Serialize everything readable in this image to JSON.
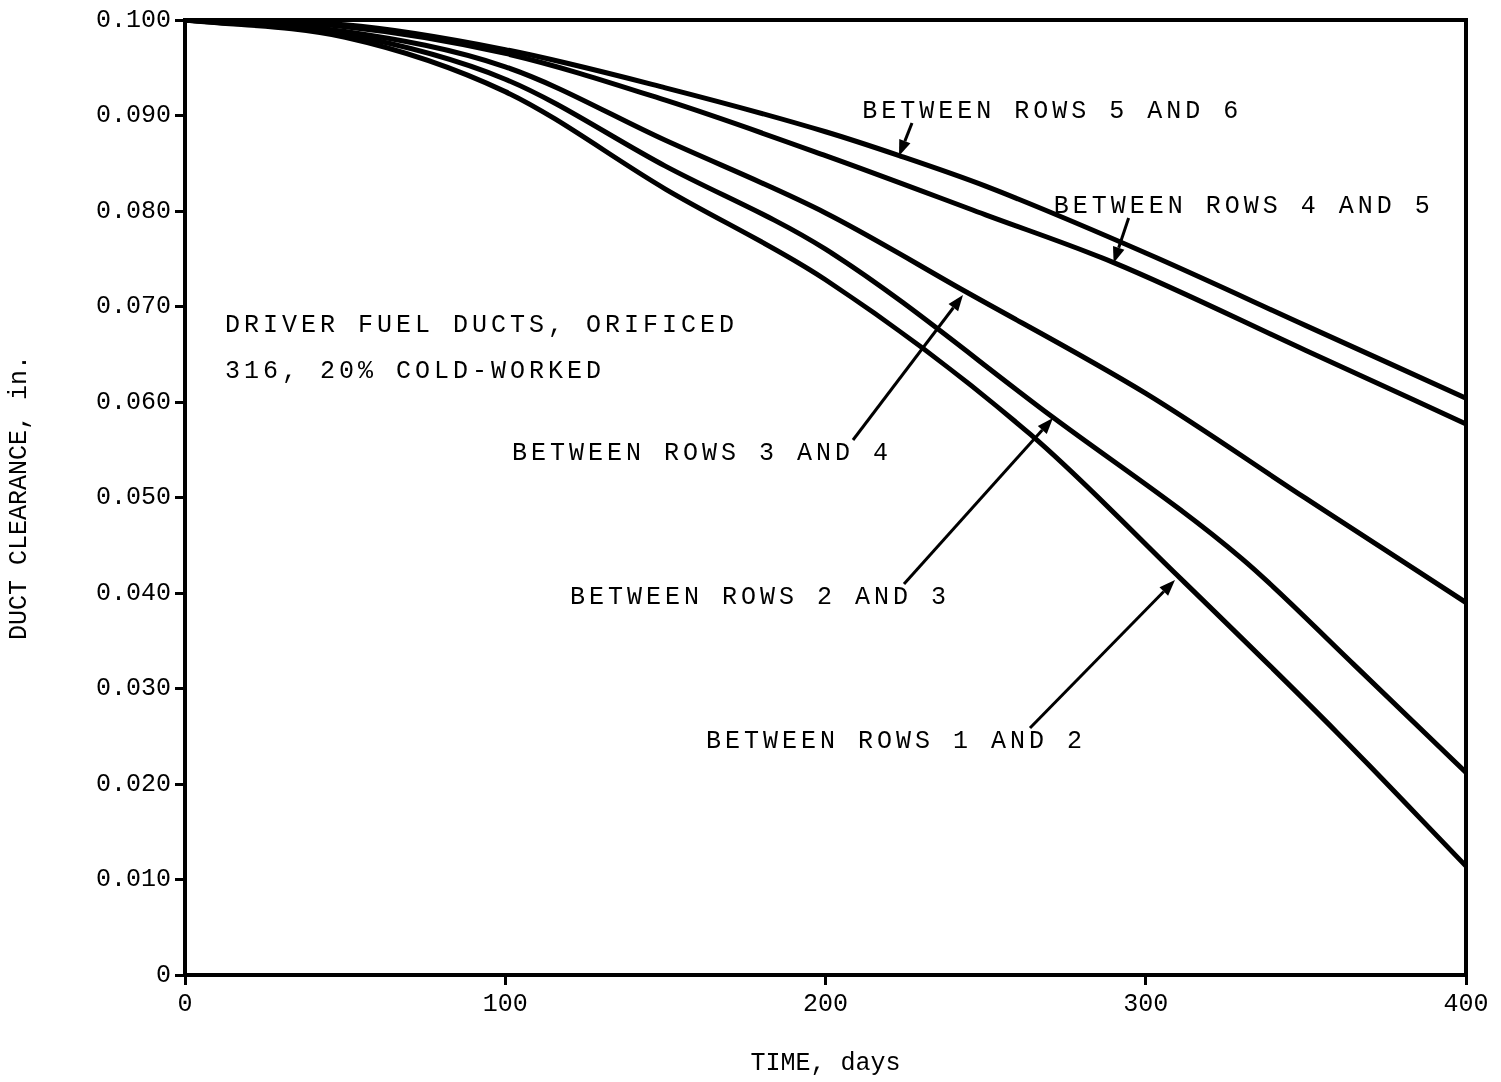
{
  "chart_data": {
    "type": "line",
    "xlabel": "TIME, days",
    "ylabel": "DUCT CLEARANCE, in.",
    "series": [
      {
        "color": "#000000",
        "x": [
          0,
          50,
          100,
          150,
          200,
          223,
          250,
          300,
          350,
          400
        ],
        "values": [
          0.1,
          0.0995,
          0.0969,
          0.0929,
          0.0883,
          0.0858,
          0.0826,
          0.0756,
          0.068,
          0.0604
        ]
      },
      {
        "color": "#000000",
        "x": [
          0,
          50,
          100,
          150,
          200,
          250,
          290,
          350,
          400
        ],
        "values": [
          0.1,
          0.0993,
          0.0965,
          0.0916,
          0.0858,
          0.0796,
          0.0746,
          0.0654,
          0.0577
        ]
      },
      {
        "color": "#000000",
        "x": [
          0,
          50,
          100,
          150,
          200,
          243,
          300,
          350,
          400
        ],
        "values": [
          0.1,
          0.0988,
          0.0951,
          0.0874,
          0.0798,
          0.0717,
          0.0609,
          0.0499,
          0.039
        ]
      },
      {
        "color": "#000000",
        "x": [
          0,
          50,
          100,
          150,
          200,
          271,
          330,
          365,
          400
        ],
        "values": [
          0.1,
          0.0985,
          0.0938,
          0.0847,
          0.076,
          0.0584,
          0.0436,
          0.0325,
          0.0212
        ]
      },
      {
        "color": "#000000",
        "x": [
          0,
          50,
          100,
          150,
          200,
          264,
          310,
          360,
          400
        ],
        "values": [
          0.1,
          0.0982,
          0.0925,
          0.0823,
          0.0728,
          0.0566,
          0.0418,
          0.0253,
          0.0114
        ]
      }
    ],
    "annotations": [
      "DRIVER FUEL DUCTS, ORIFICED",
      "316, 20% COLD-WORKED",
      {
        "text": "BETWEEN ROWS 5 AND 6",
        "x": 223,
        "y": 0.0858
      },
      {
        "text": "BETWEEN ROWS 4 AND 5",
        "x": 290,
        "y": 0.0746
      },
      "BETWEEN ROWS 3 AND 4",
      "BETWEEN ROWS 2 AND 3",
      "BETWEEN ROWS 1 AND 2"
    ],
    "xlim": [
      0,
      400
    ],
    "xticks": [
      0,
      100,
      200,
      300,
      400
    ],
    "ylim": [
      0,
      0.1
    ],
    "yticks": [
      0,
      {
        "value": 0.01,
        "label": "0.010"
      },
      {
        "value": 0.02,
        "label": "0.020"
      },
      {
        "value": 0.03,
        "label": "0.030"
      },
      {
        "value": 0.04,
        "label": "0.040"
      },
      {
        "value": 0.05,
        "label": "0.050"
      },
      {
        "value": 0.06,
        "label": "0.060"
      },
      {
        "value": 0.07,
        "label": "0.070"
      },
      {
        "value": 0.08,
        "label": "0.080"
      },
      {
        "value": 0.09,
        "label": "0.090"
      },
      {
        "value": 0.1,
        "label": "0.100"
      }
    ],
    "grid": false,
    "legend": false,
    "marker": "none",
    "line_style": "solid"
  }
}
